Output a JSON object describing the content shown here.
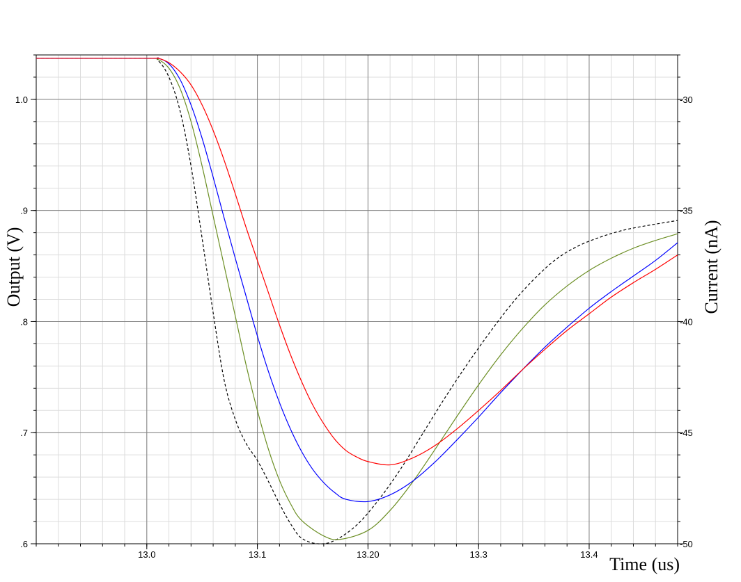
{
  "chart_data": {
    "type": "line",
    "xlabel": "Time (us)",
    "ylabel_left": "Output (V)",
    "ylabel_right": "Current (nA)",
    "xlim": [
      12.9,
      13.48
    ],
    "ylim_left": [
      0.6,
      1.04
    ],
    "ylim_right": [
      -50,
      -28
    ],
    "grid": true,
    "x_ticks": [
      {
        "value": 13.0,
        "label": "13.0"
      },
      {
        "value": 13.1,
        "label": "13.1"
      },
      {
        "value": 13.2,
        "label": "13.20"
      },
      {
        "value": 13.3,
        "label": "13.3"
      },
      {
        "value": 13.4,
        "label": "13.4"
      }
    ],
    "y_left_ticks": [
      {
        "value": 1.0,
        "label": "1.0"
      },
      {
        "value": 0.9,
        "label": ".9"
      },
      {
        "value": 0.8,
        "label": ".8"
      },
      {
        "value": 0.7,
        "label": ".7"
      },
      {
        "value": 0.6,
        "label": ".6"
      }
    ],
    "y_right_ticks": [
      {
        "value": -30,
        "label": "-30"
      },
      {
        "value": -35,
        "label": "-35"
      },
      {
        "value": -40,
        "label": "-40"
      },
      {
        "value": -45,
        "label": "-45"
      },
      {
        "value": -50,
        "label": "-50"
      }
    ],
    "series": [
      {
        "color": "#000000",
        "dashed": true,
        "axis": "left",
        "x": [
          12.9,
          13.0,
          13.01,
          13.02,
          13.03,
          13.04,
          13.05,
          13.06,
          13.07,
          13.08,
          13.09,
          13.1,
          13.11,
          13.12,
          13.13,
          13.14,
          13.155,
          13.17,
          13.19,
          13.21,
          13.23,
          13.25,
          13.27,
          13.29,
          13.31,
          13.33,
          13.35,
          13.37,
          13.39,
          13.41,
          13.43,
          13.45,
          13.48
        ],
        "y": [
          1.037,
          1.037,
          1.035,
          1.02,
          0.99,
          0.94,
          0.875,
          0.808,
          0.747,
          0.712,
          0.69,
          0.675,
          0.656,
          0.636,
          0.618,
          0.605,
          0.6,
          0.603,
          0.617,
          0.64,
          0.668,
          0.7,
          0.732,
          0.762,
          0.79,
          0.816,
          0.838,
          0.856,
          0.868,
          0.876,
          0.882,
          0.886,
          0.891
        ]
      },
      {
        "color": "#6b8e23",
        "dashed": false,
        "axis": "left",
        "x": [
          12.9,
          13.0,
          13.01,
          13.02,
          13.03,
          13.04,
          13.05,
          13.06,
          13.07,
          13.08,
          13.09,
          13.1,
          13.11,
          13.12,
          13.13,
          13.14,
          13.16,
          13.175,
          13.2,
          13.22,
          13.24,
          13.26,
          13.28,
          13.3,
          13.32,
          13.34,
          13.36,
          13.38,
          13.4,
          13.42,
          13.44,
          13.46,
          13.48
        ],
        "y": [
          1.037,
          1.037,
          1.036,
          1.028,
          1.01,
          0.98,
          0.94,
          0.895,
          0.85,
          0.805,
          0.76,
          0.72,
          0.685,
          0.657,
          0.636,
          0.621,
          0.607,
          0.604,
          0.612,
          0.63,
          0.655,
          0.684,
          0.714,
          0.743,
          0.77,
          0.794,
          0.815,
          0.832,
          0.846,
          0.857,
          0.866,
          0.873,
          0.879
        ]
      },
      {
        "color": "#0000ff",
        "dashed": false,
        "axis": "left",
        "x": [
          12.9,
          13.0,
          13.01,
          13.02,
          13.03,
          13.04,
          13.05,
          13.06,
          13.07,
          13.08,
          13.09,
          13.1,
          13.11,
          13.12,
          13.13,
          13.14,
          13.15,
          13.16,
          13.17,
          13.18,
          13.2,
          13.22,
          13.24,
          13.26,
          13.28,
          13.3,
          13.32,
          13.34,
          13.36,
          13.38,
          13.4,
          13.42,
          13.44,
          13.46,
          13.48
        ],
        "y": [
          1.037,
          1.037,
          1.037,
          1.032,
          1.018,
          0.995,
          0.965,
          0.93,
          0.893,
          0.857,
          0.822,
          0.787,
          0.755,
          0.727,
          0.703,
          0.683,
          0.667,
          0.655,
          0.646,
          0.64,
          0.638,
          0.644,
          0.656,
          0.673,
          0.693,
          0.714,
          0.736,
          0.757,
          0.777,
          0.795,
          0.812,
          0.827,
          0.841,
          0.855,
          0.871
        ]
      },
      {
        "color": "#ff0000",
        "dashed": false,
        "axis": "left",
        "x": [
          12.9,
          13.0,
          13.01,
          13.02,
          13.03,
          13.04,
          13.05,
          13.06,
          13.07,
          13.08,
          13.09,
          13.1,
          13.11,
          13.12,
          13.13,
          13.14,
          13.15,
          13.16,
          13.17,
          13.18,
          13.19,
          13.2,
          13.22,
          13.24,
          13.26,
          13.28,
          13.3,
          13.32,
          13.34,
          13.36,
          13.38,
          13.4,
          13.42,
          13.44,
          13.46,
          13.48
        ],
        "y": [
          1.037,
          1.037,
          1.037,
          1.033,
          1.025,
          1.013,
          0.995,
          0.972,
          0.945,
          0.915,
          0.884,
          0.855,
          0.826,
          0.797,
          0.77,
          0.746,
          0.725,
          0.708,
          0.694,
          0.684,
          0.678,
          0.674,
          0.671,
          0.677,
          0.688,
          0.703,
          0.72,
          0.738,
          0.757,
          0.775,
          0.792,
          0.807,
          0.822,
          0.835,
          0.847,
          0.86
        ]
      }
    ]
  }
}
